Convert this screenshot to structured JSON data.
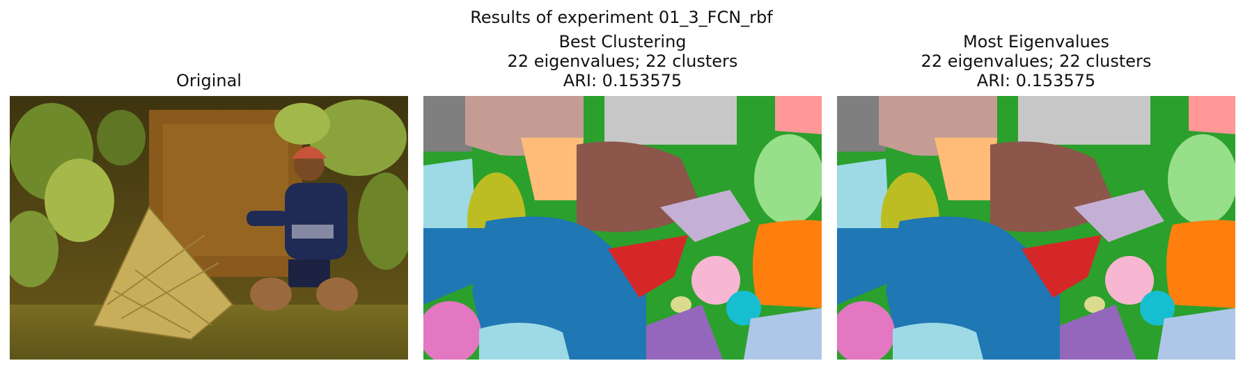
{
  "figure": {
    "suptitle": "Results of experiment 01_3_FCN_rbf"
  },
  "panels": [
    {
      "title_lines": [
        "Original"
      ],
      "kind": "photo",
      "description_hidden": true
    },
    {
      "title_lines": [
        "Best Clustering",
        "22 eigenvalues; 22 clusters",
        "ARI: 0.153575"
      ],
      "kind": "segmentation"
    },
    {
      "title_lines": [
        "Most Eigenvalues",
        "22 eigenvalues; 22 clusters",
        "ARI: 0.153575"
      ],
      "kind": "segmentation"
    }
  ],
  "palette": {
    "blue": "#1f77b4",
    "orange": "#ff7f0e",
    "green": "#2ca02c",
    "red": "#d62728",
    "purple": "#9467bd",
    "brown": "#8c564b",
    "pink": "#e377c2",
    "gray": "#7f7f7f",
    "olive": "#bcbd22",
    "cyan": "#17becf",
    "light_blue": "#aec7e8",
    "light_orange": "#ffbb78",
    "light_green": "#98df8a",
    "light_red": "#ff9896",
    "light_purple": "#c5b0d5",
    "light_brown": "#c49c94",
    "light_pink": "#f7b6d2",
    "light_gray": "#c7c7c7",
    "light_olive": "#dbdb8d",
    "light_cyan": "#9edae5"
  }
}
